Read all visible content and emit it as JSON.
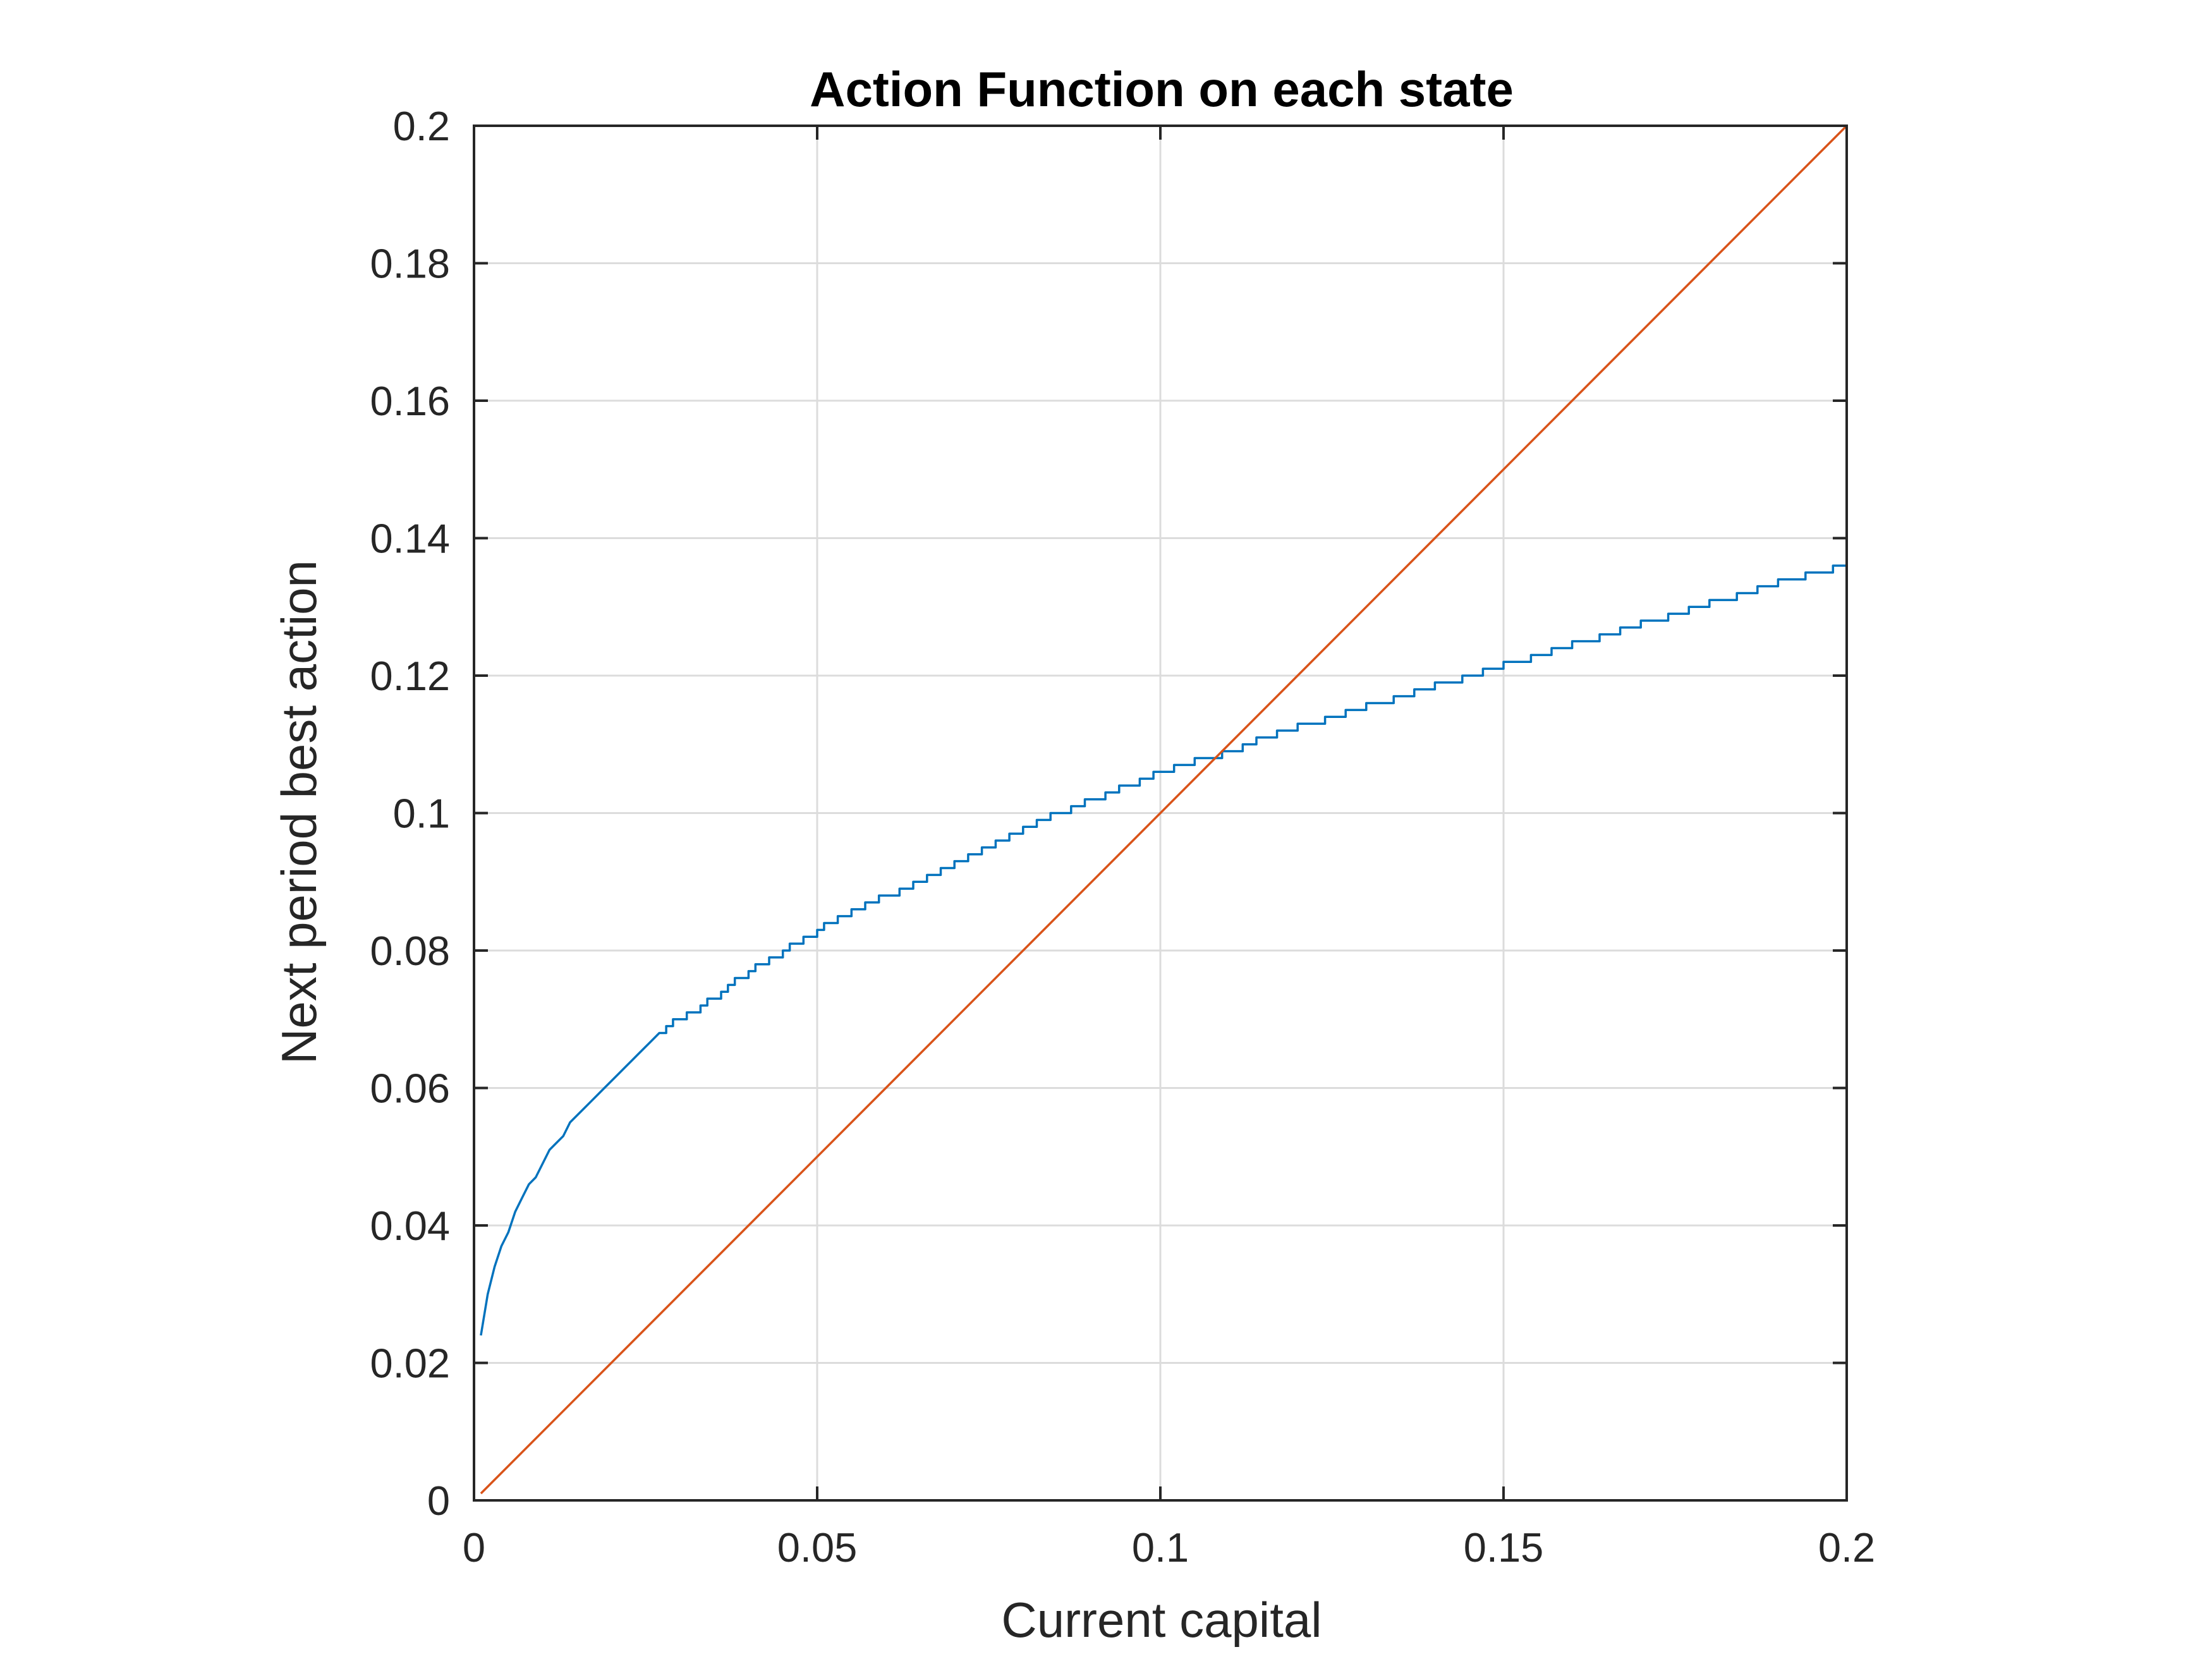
{
  "chart_data": {
    "type": "line",
    "title": "Action Function on each state",
    "xlabel": "Current capital",
    "ylabel": "Next period best action",
    "xlim": [
      0,
      0.2
    ],
    "ylim": [
      0,
      0.2
    ],
    "xticks": [
      0,
      0.05,
      0.1,
      0.15,
      0.2
    ],
    "yticks": [
      0,
      0.02,
      0.04,
      0.06,
      0.08,
      0.1,
      0.12,
      0.14,
      0.16,
      0.18,
      0.2
    ],
    "xtick_labels": [
      "0",
      "0.05",
      "0.1",
      "0.15",
      "0.2"
    ],
    "ytick_labels": [
      "0",
      "0.02",
      "0.04",
      "0.06",
      "0.08",
      "0.1",
      "0.12",
      "0.14",
      "0.16",
      "0.18",
      "0.2"
    ],
    "grid": true,
    "box": true,
    "series": [
      {
        "color": "#0072BD",
        "step": 0.001,
        "x": [
          0.001,
          0.002,
          0.003,
          0.004,
          0.005,
          0.006,
          0.007,
          0.008,
          0.009,
          0.01,
          0.011,
          0.012,
          0.013,
          0.014,
          0.016,
          0.018,
          0.02,
          0.022,
          0.024,
          0.026,
          0.028,
          0.03,
          0.033,
          0.036,
          0.04,
          0.045,
          0.05,
          0.055,
          0.06,
          0.065,
          0.07,
          0.075,
          0.08,
          0.085,
          0.09,
          0.095,
          0.1,
          0.105,
          0.11,
          0.115,
          0.12,
          0.125,
          0.13,
          0.135,
          0.14,
          0.145,
          0.15,
          0.155,
          0.16,
          0.165,
          0.17,
          0.175,
          0.18,
          0.185,
          0.19,
          0.195,
          0.2
        ],
        "y": [
          0.024,
          0.03,
          0.034,
          0.037,
          0.039,
          0.042,
          0.044,
          0.046,
          0.047,
          0.049,
          0.051,
          0.052,
          0.053,
          0.055,
          0.057,
          0.059,
          0.061,
          0.063,
          0.065,
          0.067,
          0.069,
          0.07,
          0.072,
          0.074,
          0.077,
          0.08,
          0.083,
          0.0855,
          0.088,
          0.09,
          0.0925,
          0.095,
          0.0975,
          0.1,
          0.102,
          0.104,
          0.106,
          0.1075,
          0.109,
          0.111,
          0.1125,
          0.114,
          0.1155,
          0.117,
          0.1185,
          0.12,
          0.1215,
          0.123,
          0.1245,
          0.126,
          0.1275,
          0.129,
          0.1305,
          0.132,
          0.1335,
          0.135,
          0.136
        ]
      },
      {
        "color": "#D95319",
        "x": [
          0.001,
          0.2
        ],
        "y": [
          0.001,
          0.2
        ]
      }
    ]
  }
}
